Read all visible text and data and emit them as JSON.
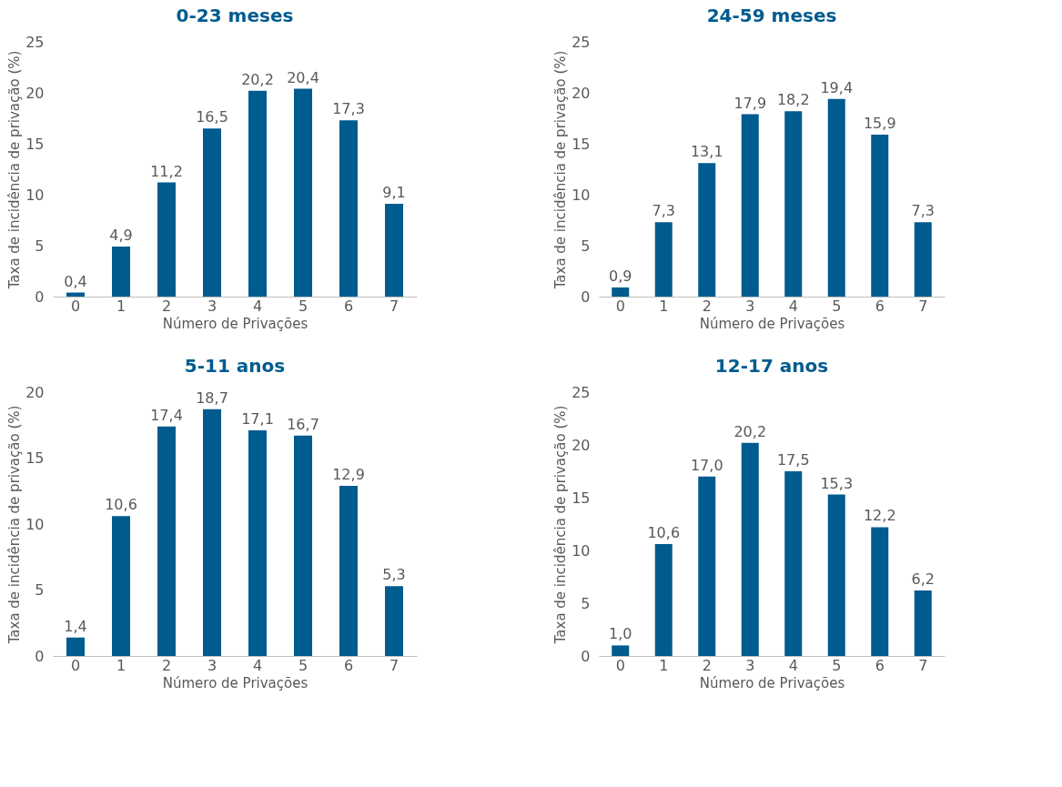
{
  "chart_data": [
    {
      "type": "bar",
      "title": "0-23 meses",
      "xlabel": "Número de Privações",
      "ylabel": "Taxa de incidência de privação (%)",
      "categories": [
        "0",
        "1",
        "2",
        "3",
        "4",
        "5",
        "6",
        "7"
      ],
      "values": [
        0.4,
        4.9,
        11.2,
        16.5,
        20.2,
        20.4,
        17.3,
        9.1
      ],
      "value_labels": [
        "0,4",
        "4,9",
        "11,2",
        "16,5",
        "20,2",
        "20,4",
        "17,3",
        "9,1"
      ],
      "color": "#005b8f",
      "ylim": [
        0,
        25
      ],
      "yticks": [
        0,
        5,
        10,
        15,
        20,
        25
      ],
      "grid": false
    },
    {
      "type": "bar",
      "title": "24-59 meses",
      "xlabel": "Número de Privações",
      "ylabel": "Taxa de incidência de privação (%)",
      "categories": [
        "0",
        "1",
        "2",
        "3",
        "4",
        "5",
        "6",
        "7"
      ],
      "values": [
        0.9,
        7.3,
        13.1,
        17.9,
        18.2,
        19.4,
        15.9,
        7.3
      ],
      "value_labels": [
        "0,9",
        "7,3",
        "13,1",
        "17,9",
        "18,2",
        "19,4",
        "15,9",
        "7,3"
      ],
      "color": "#005b8f",
      "ylim": [
        0,
        25
      ],
      "yticks": [
        0,
        5,
        10,
        15,
        20,
        25
      ],
      "grid": false
    },
    {
      "type": "bar",
      "title": "5-11 anos",
      "xlabel": "Número de Privações",
      "ylabel": "Taxa de incidência de privação (%)",
      "categories": [
        "0",
        "1",
        "2",
        "3",
        "4",
        "5",
        "6",
        "7"
      ],
      "values": [
        1.4,
        10.6,
        17.4,
        18.7,
        17.1,
        16.7,
        12.9,
        5.3
      ],
      "value_labels": [
        "1,4",
        "10,6",
        "17,4",
        "18,7",
        "17,1",
        "16,7",
        "12,9",
        "5,3"
      ],
      "color": "#005b8f",
      "ylim": [
        0,
        20
      ],
      "yticks": [
        0,
        5,
        10,
        15,
        20
      ],
      "grid": false
    },
    {
      "type": "bar",
      "title": "12-17 anos",
      "xlabel": "Número de Privações",
      "ylabel": "Taxa de incidência de privação (%)",
      "categories": [
        "0",
        "1",
        "2",
        "3",
        "4",
        "5",
        "6",
        "7"
      ],
      "values": [
        1.0,
        10.6,
        17.0,
        20.2,
        17.5,
        15.3,
        12.2,
        6.2
      ],
      "value_labels": [
        "1,0",
        "10,6",
        "17,0",
        "20,2",
        "17,5",
        "15,3",
        "12,2",
        "6,2"
      ],
      "color": "#005b8f",
      "ylim": [
        0,
        25
      ],
      "yticks": [
        0,
        5,
        10,
        15,
        20,
        25
      ],
      "grid": false
    }
  ]
}
